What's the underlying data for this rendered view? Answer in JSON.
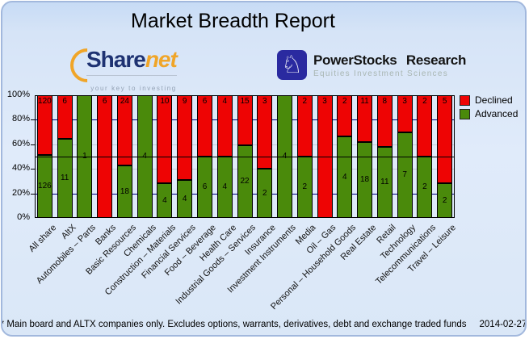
{
  "header": {
    "title": "Market Breadth Report"
  },
  "logos": {
    "sharenet": {
      "name_primary": "Share",
      "name_secondary": "net",
      "tagline": "your key to investing"
    },
    "powerstocks": {
      "name": "PowerStocks Research",
      "tagline": "Equities Investment Sciences",
      "icon": "knight-icon"
    }
  },
  "chart_data": {
    "type": "bar",
    "stacked_percent": true,
    "title": "Market Breadth Report",
    "categories": [
      "All share",
      "AltX",
      "Automobiles – Parts",
      "Banks",
      "Basic Resources",
      "Chemicals",
      "Construction – Materials",
      "Financial Services",
      "Food – Beverage",
      "Health Care",
      "Industrial Goods – Services",
      "Insurance",
      "Investment Instruments",
      "Media",
      "Oil – Gas",
      "Personal – Household Goods",
      "Real Estate",
      "Retail",
      "Technology",
      "Telecommunications",
      "Travel – Leisure"
    ],
    "series": [
      {
        "name": "Declined",
        "color": "#ee0404",
        "values": [
          120,
          6,
          0,
          6,
          24,
          0,
          10,
          9,
          6,
          4,
          15,
          3,
          0,
          2,
          3,
          2,
          11,
          8,
          3,
          2,
          5
        ]
      },
      {
        "name": "Advanced",
        "color": "#4a8a0b",
        "values": [
          126,
          11,
          1,
          0,
          18,
          4,
          4,
          4,
          6,
          4,
          22,
          2,
          4,
          2,
          0,
          4,
          18,
          11,
          7,
          2,
          2
        ]
      }
    ],
    "ylabel_ticks": [
      "0%",
      "20%",
      "40%",
      "60%",
      "80%",
      "100%"
    ],
    "ylim": [
      0,
      100
    ],
    "ref_line_pct": 50,
    "legend_position": "top-right",
    "grid": {
      "navy_pcts": [
        20,
        80
      ],
      "gray_pcts": [
        40,
        60
      ]
    },
    "colors": {
      "navy_grid": "#00007d",
      "gray_grid": "#c3ccd7",
      "ref_line": "#000000"
    }
  },
  "footer": {
    "note": "* Main board and ALTX companies only. Excludes options, warrants, derivatives, debt and exchange traded funds",
    "date": "2014-02-27"
  }
}
